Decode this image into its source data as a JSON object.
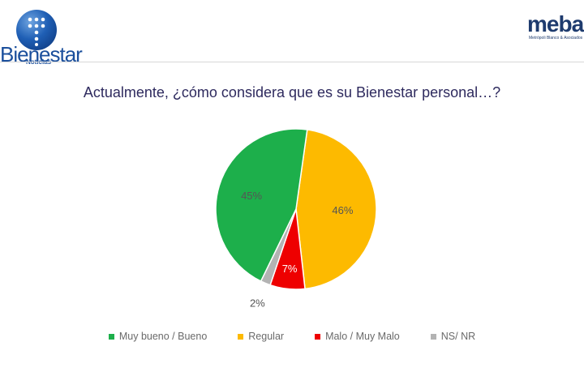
{
  "header": {
    "left_logo_text": "Bienestar",
    "left_logo_sub": "Noticias",
    "right_logo_text": "meba",
    "right_logo_sub": "Metrópoli Blanco & Asociados"
  },
  "chart_data": {
    "type": "pie",
    "title": "Actualmente, ¿cómo considera que es su Bienestar personal…?",
    "slices": [
      {
        "name": "Regular",
        "value": 46,
        "label": "46%",
        "color": "#FDBA00"
      },
      {
        "name": "Malo / Muy Malo",
        "value": 7,
        "label": "7%",
        "color": "#EE0000"
      },
      {
        "name": "NS/ NR",
        "value": 2,
        "label": "2%",
        "color": "#B3B3B3"
      },
      {
        "name": "Muy bueno / Bueno",
        "value": 45,
        "label": "45%",
        "color": "#1DAF4B"
      }
    ],
    "legend": [
      {
        "label": "Muy bueno / Bueno",
        "color": "#1DAF4B"
      },
      {
        "label": "Regular",
        "color": "#FDBA00"
      },
      {
        "label": "Malo / Muy Malo",
        "color": "#EE0000"
      },
      {
        "label": "NS/ NR",
        "color": "#B3B3B3"
      }
    ],
    "legend_position": "bottom"
  }
}
